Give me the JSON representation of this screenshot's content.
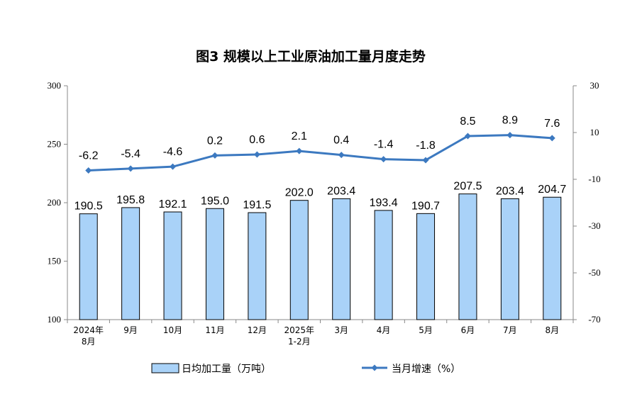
{
  "chart_data": {
    "type": "bar",
    "title": "图3  规模以上工业原油加工量月度走势",
    "categories": [
      [
        "2024年",
        "8月"
      ],
      [
        "9月"
      ],
      [
        "10月"
      ],
      [
        "11月"
      ],
      [
        "12月"
      ],
      [
        "2025年",
        "1-2月"
      ],
      [
        "3月"
      ],
      [
        "4月"
      ],
      [
        "5月"
      ],
      [
        "6月"
      ],
      [
        "7月"
      ],
      [
        "8月"
      ]
    ],
    "series": [
      {
        "name": "日均加工量（万吨）",
        "type": "bar",
        "axis": "left",
        "values": [
          190.5,
          195.8,
          192.1,
          195.0,
          191.5,
          202.0,
          203.4,
          193.4,
          190.7,
          207.5,
          203.4,
          204.7
        ],
        "labels": [
          "190.5",
          "195.8",
          "192.1",
          "195.0",
          "191.5",
          "202.0",
          "203.4",
          "193.4",
          "190.7",
          "207.5",
          "203.4",
          "204.7"
        ]
      },
      {
        "name": "当月增速（%）",
        "type": "line",
        "axis": "right",
        "values": [
          -6.2,
          -5.4,
          -4.6,
          0.2,
          0.6,
          2.1,
          0.4,
          -1.4,
          -1.8,
          8.5,
          8.9,
          7.6
        ],
        "labels": [
          "-6.2",
          "-5.4",
          "-4.6",
          "0.2",
          "0.6",
          "2.1",
          "0.4",
          "-1.4",
          "-1.8",
          "8.5",
          "8.9",
          "7.6"
        ]
      }
    ],
    "y_left": {
      "min": 100,
      "max": 300,
      "ticks": [
        100,
        150,
        200,
        250,
        300
      ]
    },
    "y_right": {
      "min": -70,
      "max": 30,
      "ticks": [
        -70,
        -50,
        -30,
        -10,
        10,
        30
      ]
    },
    "legend_position": "bottom",
    "grid": false,
    "colors": {
      "bar_fill": "#a9d2f8",
      "bar_stroke": "#000000",
      "line": "#3c79c0",
      "axis": "#888888"
    }
  }
}
